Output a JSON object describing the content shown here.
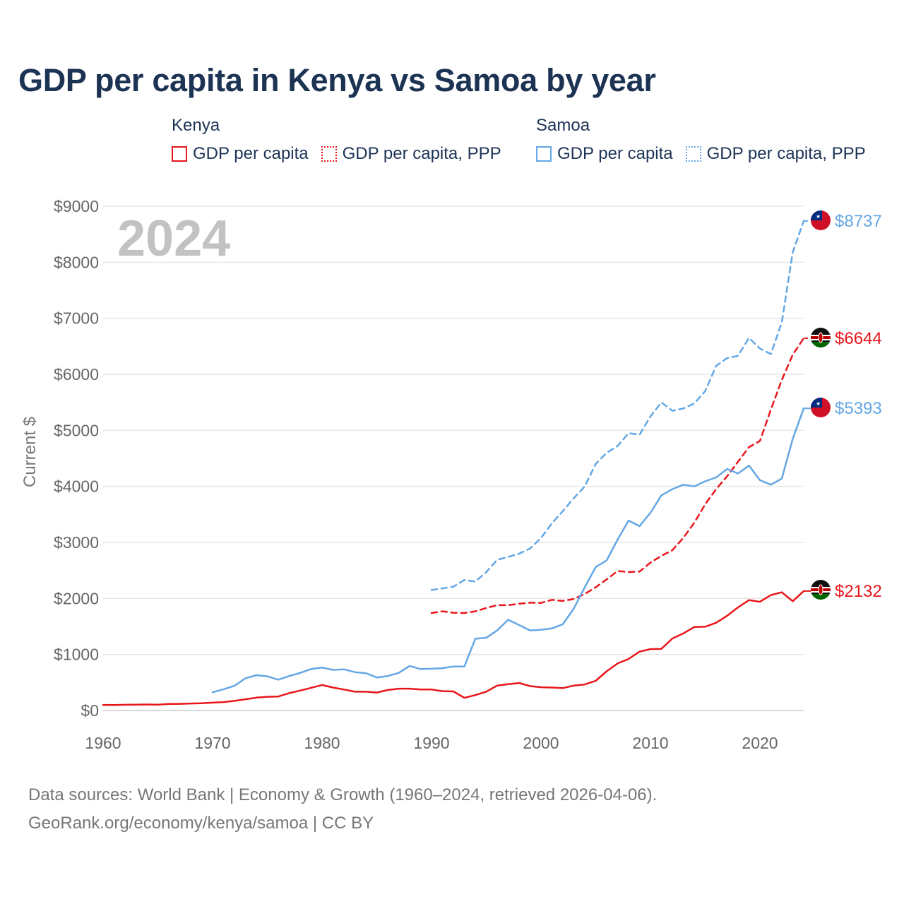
{
  "title": "GDP per capita in Kenya vs Samoa by year",
  "legend": {
    "groups": [
      {
        "country": "Kenya",
        "color": "#e8161b",
        "items": [
          {
            "label": "GDP per capita",
            "style": "solid"
          },
          {
            "label": "GDP per capita, PPP",
            "style": "dotted"
          }
        ]
      },
      {
        "country": "Samoa",
        "color": "#64a7e4",
        "items": [
          {
            "label": "GDP per capita",
            "style": "solid"
          },
          {
            "label": "GDP per capita, PPP",
            "style": "dotted"
          }
        ]
      }
    ]
  },
  "year_label": "2024",
  "footer": {
    "line1": "Data sources: World Bank | Economy & Growth (1960–2024, retrieved 2026-04-06).",
    "line2": "GeoRank.org/economy/kenya/samoa | CC BY"
  },
  "chart_data": {
    "type": "line",
    "title": "GDP per capita in Kenya vs Samoa by year",
    "xlabel": "",
    "ylabel": "Current $",
    "xlim": [
      1960,
      2024
    ],
    "ylim": [
      0,
      9000
    ],
    "grid": true,
    "x_ticks": [
      1960,
      1970,
      1980,
      1990,
      2000,
      2010,
      2020
    ],
    "y_ticks": [
      0,
      1000,
      2000,
      3000,
      4000,
      5000,
      6000,
      7000,
      8000,
      9000
    ],
    "y_tick_labels": [
      "$0",
      "$1000",
      "$2000",
      "$3000",
      "$4000",
      "$5000",
      "$6000",
      "$7000",
      "$8000",
      "$9000"
    ],
    "series": [
      {
        "name": "Kenya GDP per capita",
        "country": "Kenya",
        "color": "#e8161b",
        "dash": false,
        "end_label": "$2132",
        "points": [
          [
            1960,
            100
          ],
          [
            1961,
            98
          ],
          [
            1962,
            102
          ],
          [
            1963,
            104
          ],
          [
            1964,
            107
          ],
          [
            1965,
            105
          ],
          [
            1966,
            116
          ],
          [
            1967,
            118
          ],
          [
            1968,
            125
          ],
          [
            1969,
            130
          ],
          [
            1970,
            140
          ],
          [
            1971,
            150
          ],
          [
            1972,
            172
          ],
          [
            1973,
            200
          ],
          [
            1974,
            230
          ],
          [
            1975,
            245
          ],
          [
            1976,
            250
          ],
          [
            1977,
            310
          ],
          [
            1978,
            355
          ],
          [
            1979,
            405
          ],
          [
            1980,
            455
          ],
          [
            1981,
            410
          ],
          [
            1982,
            375
          ],
          [
            1983,
            335
          ],
          [
            1984,
            335
          ],
          [
            1985,
            320
          ],
          [
            1986,
            365
          ],
          [
            1987,
            390
          ],
          [
            1988,
            390
          ],
          [
            1989,
            375
          ],
          [
            1990,
            375
          ],
          [
            1991,
            345
          ],
          [
            1992,
            340
          ],
          [
            1993,
            225
          ],
          [
            1994,
            275
          ],
          [
            1995,
            335
          ],
          [
            1996,
            445
          ],
          [
            1997,
            470
          ],
          [
            1998,
            490
          ],
          [
            1999,
            435
          ],
          [
            2000,
            415
          ],
          [
            2001,
            410
          ],
          [
            2002,
            400
          ],
          [
            2003,
            445
          ],
          [
            2004,
            465
          ],
          [
            2005,
            530
          ],
          [
            2006,
            700
          ],
          [
            2007,
            840
          ],
          [
            2008,
            920
          ],
          [
            2009,
            1050
          ],
          [
            2010,
            1095
          ],
          [
            2011,
            1100
          ],
          [
            2012,
            1285
          ],
          [
            2013,
            1375
          ],
          [
            2014,
            1490
          ],
          [
            2015,
            1495
          ],
          [
            2016,
            1565
          ],
          [
            2017,
            1690
          ],
          [
            2018,
            1840
          ],
          [
            2019,
            1970
          ],
          [
            2020,
            1940
          ],
          [
            2021,
            2060
          ],
          [
            2022,
            2110
          ],
          [
            2023,
            1950
          ],
          [
            2024,
            2132
          ]
        ]
      },
      {
        "name": "Kenya GDP per capita, PPP",
        "country": "Kenya",
        "color": "#e8161b",
        "dash": true,
        "end_label": "$6644",
        "points": [
          [
            1990,
            1740
          ],
          [
            1991,
            1770
          ],
          [
            1992,
            1745
          ],
          [
            1993,
            1740
          ],
          [
            1994,
            1770
          ],
          [
            1995,
            1830
          ],
          [
            1996,
            1880
          ],
          [
            1997,
            1880
          ],
          [
            1998,
            1905
          ],
          [
            1999,
            1925
          ],
          [
            2000,
            1920
          ],
          [
            2001,
            1975
          ],
          [
            2002,
            1955
          ],
          [
            2003,
            1990
          ],
          [
            2004,
            2080
          ],
          [
            2005,
            2200
          ],
          [
            2006,
            2340
          ],
          [
            2007,
            2490
          ],
          [
            2008,
            2470
          ],
          [
            2009,
            2480
          ],
          [
            2010,
            2640
          ],
          [
            2011,
            2760
          ],
          [
            2012,
            2860
          ],
          [
            2013,
            3080
          ],
          [
            2014,
            3350
          ],
          [
            2015,
            3680
          ],
          [
            2016,
            3950
          ],
          [
            2017,
            4180
          ],
          [
            2018,
            4440
          ],
          [
            2019,
            4700
          ],
          [
            2020,
            4810
          ],
          [
            2021,
            5370
          ],
          [
            2022,
            5900
          ],
          [
            2023,
            6350
          ],
          [
            2024,
            6644
          ]
        ]
      },
      {
        "name": "Samoa GDP per capita",
        "country": "Samoa",
        "color": "#64a7e4",
        "dash": false,
        "end_label": "$5393",
        "points": [
          [
            1970,
            325
          ],
          [
            1971,
            380
          ],
          [
            1972,
            440
          ],
          [
            1973,
            575
          ],
          [
            1974,
            630
          ],
          [
            1975,
            610
          ],
          [
            1976,
            550
          ],
          [
            1977,
            615
          ],
          [
            1978,
            670
          ],
          [
            1979,
            740
          ],
          [
            1980,
            765
          ],
          [
            1981,
            725
          ],
          [
            1982,
            735
          ],
          [
            1983,
            685
          ],
          [
            1984,
            665
          ],
          [
            1985,
            590
          ],
          [
            1986,
            615
          ],
          [
            1987,
            670
          ],
          [
            1988,
            795
          ],
          [
            1989,
            740
          ],
          [
            1990,
            745
          ],
          [
            1991,
            755
          ],
          [
            1992,
            785
          ],
          [
            1993,
            785
          ],
          [
            1994,
            1280
          ],
          [
            1995,
            1300
          ],
          [
            1996,
            1430
          ],
          [
            1997,
            1620
          ],
          [
            1998,
            1525
          ],
          [
            1999,
            1430
          ],
          [
            2000,
            1440
          ],
          [
            2001,
            1465
          ],
          [
            2002,
            1540
          ],
          [
            2003,
            1820
          ],
          [
            2004,
            2200
          ],
          [
            2005,
            2560
          ],
          [
            2006,
            2680
          ],
          [
            2007,
            3050
          ],
          [
            2008,
            3390
          ],
          [
            2009,
            3290
          ],
          [
            2010,
            3530
          ],
          [
            2011,
            3840
          ],
          [
            2012,
            3950
          ],
          [
            2013,
            4030
          ],
          [
            2014,
            4000
          ],
          [
            2015,
            4090
          ],
          [
            2016,
            4160
          ],
          [
            2017,
            4310
          ],
          [
            2018,
            4230
          ],
          [
            2019,
            4370
          ],
          [
            2020,
            4110
          ],
          [
            2021,
            4030
          ],
          [
            2022,
            4140
          ],
          [
            2023,
            4850
          ],
          [
            2024,
            5393
          ]
        ]
      },
      {
        "name": "Samoa GDP per capita, PPP",
        "country": "Samoa",
        "color": "#64a7e4",
        "dash": true,
        "end_label": "$8737",
        "points": [
          [
            1990,
            2150
          ],
          [
            1991,
            2180
          ],
          [
            1992,
            2210
          ],
          [
            1993,
            2330
          ],
          [
            1994,
            2300
          ],
          [
            1995,
            2470
          ],
          [
            1996,
            2690
          ],
          [
            1997,
            2740
          ],
          [
            1998,
            2800
          ],
          [
            1999,
            2890
          ],
          [
            2000,
            3080
          ],
          [
            2001,
            3340
          ],
          [
            2002,
            3560
          ],
          [
            2003,
            3790
          ],
          [
            2004,
            4000
          ],
          [
            2005,
            4400
          ],
          [
            2006,
            4600
          ],
          [
            2007,
            4720
          ],
          [
            2008,
            4950
          ],
          [
            2009,
            4920
          ],
          [
            2010,
            5250
          ],
          [
            2011,
            5500
          ],
          [
            2012,
            5350
          ],
          [
            2013,
            5390
          ],
          [
            2014,
            5480
          ],
          [
            2015,
            5700
          ],
          [
            2016,
            6150
          ],
          [
            2017,
            6290
          ],
          [
            2018,
            6330
          ],
          [
            2019,
            6650
          ],
          [
            2020,
            6460
          ],
          [
            2021,
            6360
          ],
          [
            2022,
            6930
          ],
          [
            2023,
            8180
          ],
          [
            2024,
            8737
          ]
        ]
      }
    ]
  }
}
